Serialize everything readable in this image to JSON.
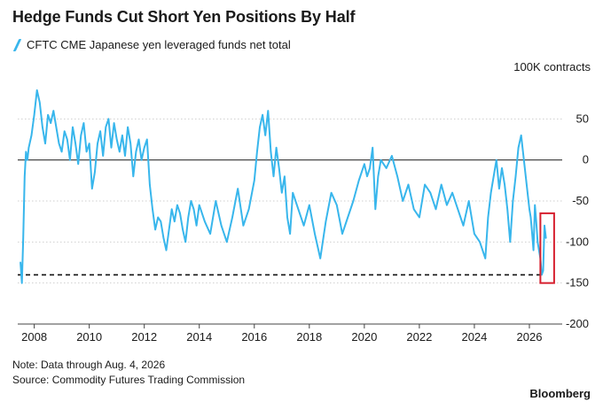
{
  "header": {
    "title": "Hedge Funds Cut Short Yen Positions By Half"
  },
  "legend": {
    "label": "CFTC CME Japanese yen leveraged funds net total",
    "color": "#38b6ec"
  },
  "unit_label": "100K contracts",
  "footer": {
    "note": "Note: Data through Aug. 4, 2026",
    "source": "Source: Commodity Futures Trading Commission",
    "brand": "Bloomberg"
  },
  "colors": {
    "line": "#38b6ec",
    "highlight_box": "#d6202f",
    "zero_line": "#333333",
    "grid": "#cfcfcf",
    "reference_line": "#111111"
  },
  "chart_data": {
    "type": "line",
    "title": "Hedge Funds Cut Short Yen Positions By Half",
    "ylabel": "100K contracts",
    "xlabel": "",
    "ylim": [
      -200,
      100
    ],
    "xlim": [
      2007.4,
      2027.0
    ],
    "y_ticks": [
      50,
      0,
      -50,
      -100,
      -150,
      -200
    ],
    "y_tick_labels": [
      "50",
      "0",
      "-50",
      "-100",
      "-150",
      "-200"
    ],
    "x_ticks": [
      2008,
      2010,
      2012,
      2014,
      2016,
      2018,
      2020,
      2022,
      2024,
      2026
    ],
    "x_tick_labels": [
      "2008",
      "2010",
      "2012",
      "2014",
      "2016",
      "2018",
      "2020",
      "2022",
      "2024",
      "2026"
    ],
    "grid": true,
    "zero_line": true,
    "reference_line": {
      "y": -140,
      "style": "dashed"
    },
    "highlight": {
      "x_range": [
        2026.4,
        2026.9
      ],
      "y_range": [
        -150,
        -65
      ]
    },
    "series": [
      {
        "name": "CFTC CME Japanese yen leveraged funds net total",
        "x": [
          2007.5,
          2007.55,
          2007.6,
          2007.65,
          2007.7,
          2007.75,
          2007.8,
          2007.9,
          2008.0,
          2008.1,
          2008.2,
          2008.3,
          2008.4,
          2008.5,
          2008.6,
          2008.7,
          2008.8,
          2008.9,
          2009.0,
          2009.1,
          2009.2,
          2009.3,
          2009.4,
          2009.5,
          2009.6,
          2009.7,
          2009.8,
          2009.9,
          2010.0,
          2010.1,
          2010.2,
          2010.3,
          2010.4,
          2010.5,
          2010.6,
          2010.7,
          2010.8,
          2010.9,
          2011.0,
          2011.1,
          2011.2,
          2011.3,
          2011.4,
          2011.5,
          2011.6,
          2011.7,
          2011.8,
          2011.9,
          2012.0,
          2012.1,
          2012.2,
          2012.3,
          2012.4,
          2012.5,
          2012.6,
          2012.7,
          2012.8,
          2012.9,
          2013.0,
          2013.1,
          2013.2,
          2013.3,
          2013.4,
          2013.5,
          2013.6,
          2013.7,
          2013.8,
          2013.9,
          2014.0,
          2014.2,
          2014.4,
          2014.6,
          2014.8,
          2015.0,
          2015.2,
          2015.4,
          2015.6,
          2015.8,
          2016.0,
          2016.1,
          2016.2,
          2016.3,
          2016.4,
          2016.5,
          2016.6,
          2016.7,
          2016.8,
          2016.9,
          2017.0,
          2017.1,
          2017.2,
          2017.3,
          2017.4,
          2017.6,
          2017.8,
          2018.0,
          2018.2,
          2018.4,
          2018.6,
          2018.8,
          2019.0,
          2019.2,
          2019.4,
          2019.6,
          2019.8,
          2020.0,
          2020.1,
          2020.2,
          2020.3,
          2020.4,
          2020.5,
          2020.6,
          2020.8,
          2021.0,
          2021.2,
          2021.4,
          2021.6,
          2021.8,
          2022.0,
          2022.2,
          2022.4,
          2022.6,
          2022.8,
          2023.0,
          2023.2,
          2023.4,
          2023.6,
          2023.8,
          2024.0,
          2024.2,
          2024.4,
          2024.5,
          2024.6,
          2024.7,
          2024.8,
          2024.9,
          2025.0,
          2025.1,
          2025.2,
          2025.3,
          2025.4,
          2025.5,
          2025.6,
          2025.7,
          2025.8,
          2025.9,
          2026.0,
          2026.05,
          2026.1,
          2026.15,
          2026.2,
          2026.25,
          2026.3,
          2026.35,
          2026.4,
          2026.45,
          2026.5,
          2026.55,
          2026.6
        ],
        "values": [
          -125,
          -150,
          -95,
          -20,
          10,
          0,
          15,
          30,
          55,
          85,
          70,
          40,
          20,
          55,
          45,
          60,
          40,
          20,
          10,
          35,
          25,
          0,
          40,
          20,
          -5,
          30,
          45,
          10,
          20,
          -35,
          -15,
          20,
          35,
          5,
          40,
          50,
          15,
          45,
          25,
          10,
          30,
          5,
          40,
          20,
          -20,
          10,
          25,
          0,
          15,
          25,
          -30,
          -60,
          -85,
          -70,
          -75,
          -95,
          -110,
          -85,
          -60,
          -75,
          -55,
          -65,
          -85,
          -100,
          -70,
          -50,
          -60,
          -80,
          -55,
          -75,
          -90,
          -50,
          -80,
          -100,
          -70,
          -35,
          -80,
          -60,
          -25,
          10,
          40,
          55,
          30,
          60,
          10,
          -20,
          15,
          -10,
          -40,
          -20,
          -70,
          -90,
          -40,
          -60,
          -80,
          -55,
          -90,
          -120,
          -75,
          -40,
          -55,
          -90,
          -70,
          -50,
          -25,
          -5,
          -20,
          -10,
          15,
          -60,
          -20,
          0,
          -10,
          5,
          -20,
          -50,
          -30,
          -60,
          -70,
          -30,
          -40,
          -60,
          -30,
          -55,
          -40,
          -60,
          -80,
          -50,
          -90,
          -100,
          -120,
          -70,
          -40,
          -20,
          0,
          -35,
          -10,
          -30,
          -60,
          -100,
          -50,
          -20,
          15,
          30,
          0,
          -30,
          -60,
          -70,
          -90,
          -110,
          -55,
          -75,
          -100,
          -110,
          -120,
          -140,
          -135,
          -80,
          -95
        ]
      }
    ]
  }
}
